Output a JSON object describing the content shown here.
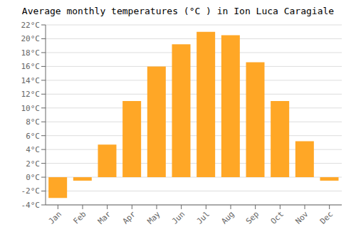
{
  "chart_data": {
    "type": "bar",
    "title": "Average monthly temperatures (°C ) in Ion Luca Caragiale",
    "categories": [
      "Jan",
      "Feb",
      "Mar",
      "Apr",
      "May",
      "Jun",
      "Jul",
      "Aug",
      "Sep",
      "Oct",
      "Nov",
      "Dec"
    ],
    "values": [
      -3.0,
      -0.5,
      4.7,
      11.0,
      16.0,
      19.2,
      21.0,
      20.5,
      16.6,
      11.0,
      5.2,
      -0.5
    ],
    "color": "#FFA726",
    "ylim": [
      -4,
      22
    ],
    "yticks": [
      {
        "value": -4,
        "label": "-4°C"
      },
      {
        "value": -2,
        "label": "-2°C"
      },
      {
        "value": 0,
        "label": "0°C"
      },
      {
        "value": 2,
        "label": "2°C"
      },
      {
        "value": 4,
        "label": "4°C"
      },
      {
        "value": 6,
        "label": "6°C"
      },
      {
        "value": 8,
        "label": "8°C"
      },
      {
        "value": 10,
        "label": "10°C"
      },
      {
        "value": 12,
        "label": "12°C"
      },
      {
        "value": 14,
        "label": "14°C"
      },
      {
        "value": 16,
        "label": "16°C"
      },
      {
        "value": 18,
        "label": "18°C"
      },
      {
        "value": 20,
        "label": "20°C"
      },
      {
        "value": 22,
        "label": "22°C"
      }
    ],
    "grid": true
  }
}
